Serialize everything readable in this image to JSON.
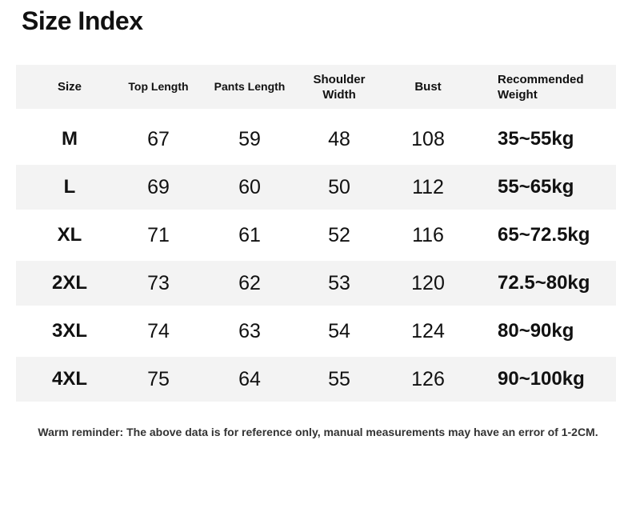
{
  "title": "Size Index",
  "headers": [
    "Size",
    "Top Length",
    "Pants Length",
    "Shoulder Width",
    "Bust",
    "Recommended Weight"
  ],
  "rows": [
    [
      "M",
      "67",
      "59",
      "48",
      "108",
      "35~55kg"
    ],
    [
      "L",
      "69",
      "60",
      "50",
      "112",
      "55~65kg"
    ],
    [
      "XL",
      "71",
      "61",
      "52",
      "116",
      "65~72.5kg"
    ],
    [
      "2XL",
      "73",
      "62",
      "53",
      "120",
      "72.5~80kg"
    ],
    [
      "3XL",
      "74",
      "63",
      "54",
      "124",
      "80~90kg"
    ],
    [
      "4XL",
      "75",
      "64",
      "55",
      "126",
      "90~100kg"
    ]
  ],
  "note": "Warm reminder: The above data is for reference only, manual measurements may have an error of 1-2CM.",
  "colors": {
    "row_stripe": "#f3f3f3",
    "text": "#111111"
  }
}
